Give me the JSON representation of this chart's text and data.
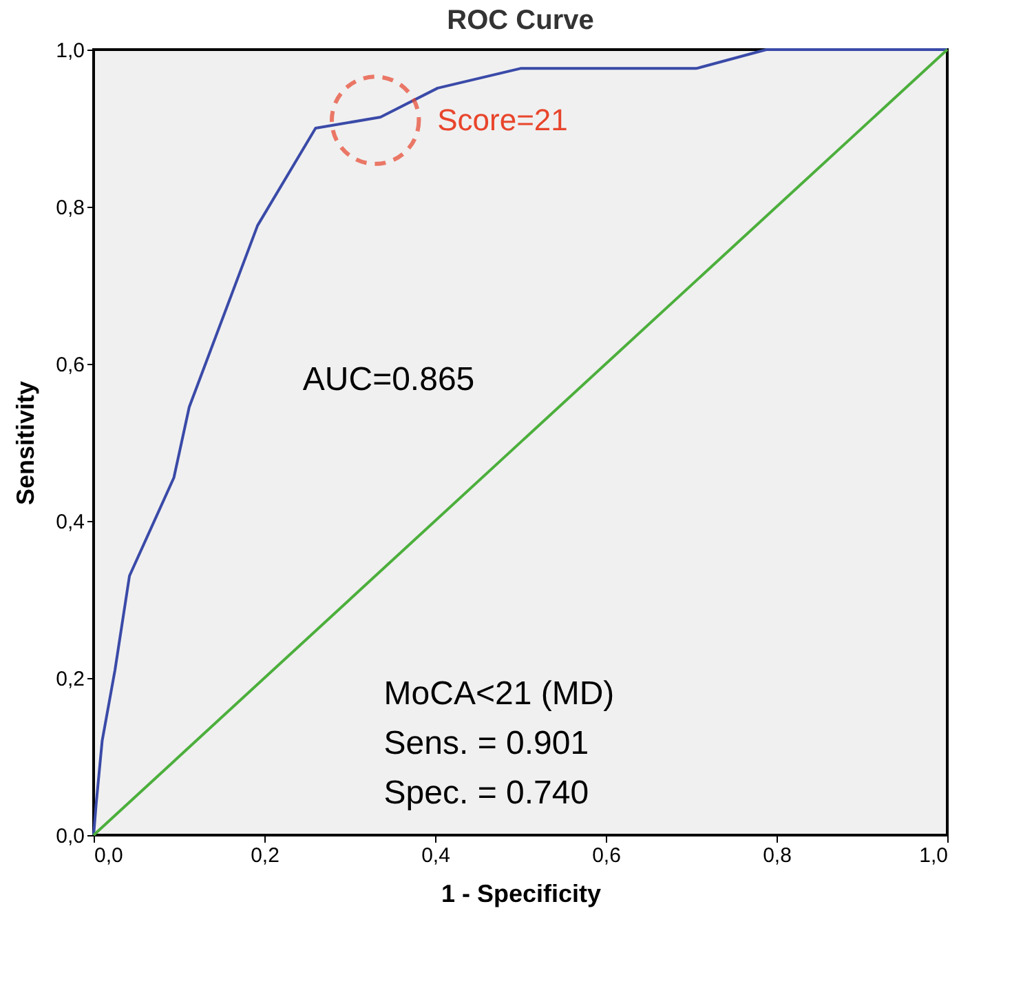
{
  "chart_data": {
    "type": "line",
    "title": "ROC Curve",
    "xlabel": "1 - Specificity",
    "ylabel": "Sensitivity",
    "xlim": [
      0,
      1
    ],
    "ylim": [
      0,
      1
    ],
    "xticks": [
      {
        "value": 0,
        "label": "0,0"
      },
      {
        "value": 0.2,
        "label": "0,2"
      },
      {
        "value": 0.4,
        "label": "0,4"
      },
      {
        "value": 0.6,
        "label": "0,6"
      },
      {
        "value": 0.8,
        "label": "0,8"
      },
      {
        "value": 1,
        "label": "1,0"
      }
    ],
    "yticks": [
      {
        "value": 0,
        "label": "0,0"
      },
      {
        "value": 0.2,
        "label": "0,2"
      },
      {
        "value": 0.4,
        "label": "0,4"
      },
      {
        "value": 0.6,
        "label": "0,6"
      },
      {
        "value": 0.8,
        "label": "0,8"
      },
      {
        "value": 1,
        "label": "1,0"
      }
    ],
    "grid": false,
    "marker": "none",
    "line_style": "solid",
    "series": [
      {
        "color": "#3a4aa8",
        "x": [
          0,
          0.003,
          0.01,
          0.025,
          0.042,
          0.094,
          0.112,
          0.192,
          0.26,
          0.336,
          0.403,
          0.5,
          0.706,
          0.788,
          1
        ],
        "values": [
          0,
          0.04,
          0.12,
          0.21,
          0.33,
          0.455,
          0.545,
          0.776,
          0.9,
          0.914,
          0.951,
          0.976,
          0.976,
          1,
          1
        ]
      },
      {
        "color": "#4caf3c",
        "x": [
          0,
          1
        ],
        "values": [
          0,
          1
        ]
      }
    ],
    "annotations": [
      {
        "text": "Score=21",
        "x": 0.33,
        "y": 0.91
      },
      "AUC=0.865",
      "MoCA<21 (MD)\nSens. = 0.901\nSpec. = 0.740"
    ]
  }
}
